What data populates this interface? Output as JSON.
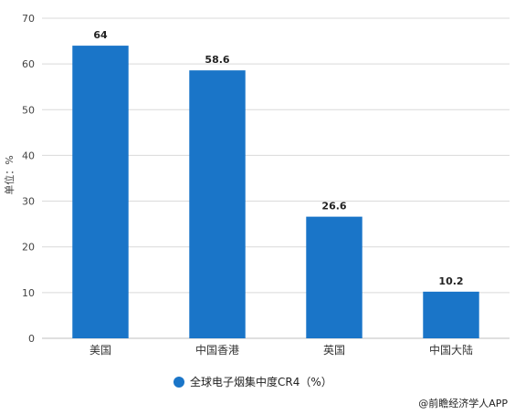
{
  "chart_data": {
    "type": "bar",
    "categories": [
      "美国",
      "中国香港",
      "英国",
      "中国大陆"
    ],
    "series": [
      {
        "name": "全球电子烟集中度CR4（%）",
        "values": [
          64,
          58.6,
          26.6,
          10.2
        ],
        "color": "#1a75c8"
      }
    ],
    "data_labels": [
      "64",
      "58.6",
      "26.6",
      "10.2"
    ],
    "ylabel": "单位：%",
    "xlabel": "",
    "ylim": [
      0,
      70
    ],
    "yticks": [
      0,
      10,
      20,
      30,
      40,
      50,
      60,
      70
    ],
    "grid": true,
    "legend_position": "bottom-center"
  },
  "source": "@前瞻经济学人APP",
  "colors": {
    "bar": "#1a75c8",
    "grid": "#d9d9d9",
    "axis": "#bfbfbf"
  }
}
